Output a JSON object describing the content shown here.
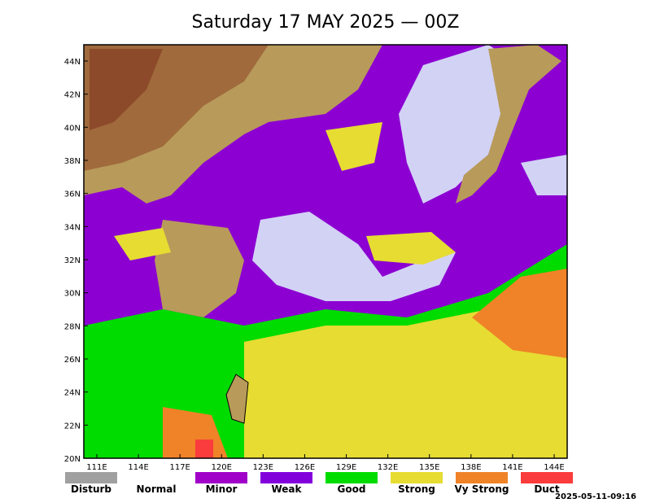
{
  "title": "Saturday 17 MAY 2025 — 00Z",
  "lat_ticks": [
    "44N",
    "42N",
    "40N",
    "38N",
    "36N",
    "34N",
    "32N",
    "30N",
    "28N",
    "26N",
    "24N",
    "22N",
    "20N"
  ],
  "lon_ticks": [
    "111E",
    "114E",
    "117E",
    "120E",
    "123E",
    "126E",
    "129E",
    "132E",
    "135E",
    "138E",
    "141E",
    "144E"
  ],
  "legend": [
    {
      "label": "Disturb",
      "color": "#a0a0a0"
    },
    {
      "label": "Normal",
      "color": "#ffffff"
    },
    {
      "label": "Minor",
      "color": "#a000c8"
    },
    {
      "label": "Weak",
      "color": "#8200dc"
    },
    {
      "label": "Good",
      "color": "#00dc00"
    },
    {
      "label": "Strong",
      "color": "#e6dc32"
    },
    {
      "label": "Vy Strong",
      "color": "#f08228"
    },
    {
      "label": "Duct",
      "color": "#fa3c3c"
    }
  ],
  "timestamp": "2025-05-11-09:16"
}
